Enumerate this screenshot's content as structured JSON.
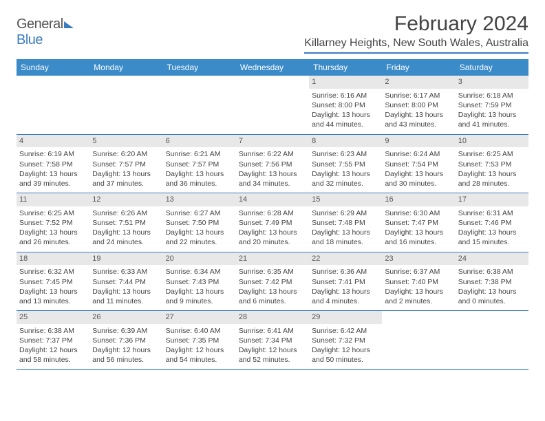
{
  "logo": {
    "text1": "General",
    "text2": "Blue"
  },
  "title": "February 2024",
  "location": "Killarney Heights, New South Wales, Australia",
  "colors": {
    "header_bar": "#3b8bc9",
    "accent": "#3b7bbf",
    "daynum_bg": "#e8e8e8",
    "text": "#444444"
  },
  "dow": [
    "Sunday",
    "Monday",
    "Tuesday",
    "Wednesday",
    "Thursday",
    "Friday",
    "Saturday"
  ],
  "weeks": [
    [
      null,
      null,
      null,
      null,
      {
        "n": "1",
        "sr": "6:16 AM",
        "ss": "8:00 PM",
        "dl": "13 hours and 44 minutes."
      },
      {
        "n": "2",
        "sr": "6:17 AM",
        "ss": "8:00 PM",
        "dl": "13 hours and 43 minutes."
      },
      {
        "n": "3",
        "sr": "6:18 AM",
        "ss": "7:59 PM",
        "dl": "13 hours and 41 minutes."
      }
    ],
    [
      {
        "n": "4",
        "sr": "6:19 AM",
        "ss": "7:58 PM",
        "dl": "13 hours and 39 minutes."
      },
      {
        "n": "5",
        "sr": "6:20 AM",
        "ss": "7:57 PM",
        "dl": "13 hours and 37 minutes."
      },
      {
        "n": "6",
        "sr": "6:21 AM",
        "ss": "7:57 PM",
        "dl": "13 hours and 36 minutes."
      },
      {
        "n": "7",
        "sr": "6:22 AM",
        "ss": "7:56 PM",
        "dl": "13 hours and 34 minutes."
      },
      {
        "n": "8",
        "sr": "6:23 AM",
        "ss": "7:55 PM",
        "dl": "13 hours and 32 minutes."
      },
      {
        "n": "9",
        "sr": "6:24 AM",
        "ss": "7:54 PM",
        "dl": "13 hours and 30 minutes."
      },
      {
        "n": "10",
        "sr": "6:25 AM",
        "ss": "7:53 PM",
        "dl": "13 hours and 28 minutes."
      }
    ],
    [
      {
        "n": "11",
        "sr": "6:25 AM",
        "ss": "7:52 PM",
        "dl": "13 hours and 26 minutes."
      },
      {
        "n": "12",
        "sr": "6:26 AM",
        "ss": "7:51 PM",
        "dl": "13 hours and 24 minutes."
      },
      {
        "n": "13",
        "sr": "6:27 AM",
        "ss": "7:50 PM",
        "dl": "13 hours and 22 minutes."
      },
      {
        "n": "14",
        "sr": "6:28 AM",
        "ss": "7:49 PM",
        "dl": "13 hours and 20 minutes."
      },
      {
        "n": "15",
        "sr": "6:29 AM",
        "ss": "7:48 PM",
        "dl": "13 hours and 18 minutes."
      },
      {
        "n": "16",
        "sr": "6:30 AM",
        "ss": "7:47 PM",
        "dl": "13 hours and 16 minutes."
      },
      {
        "n": "17",
        "sr": "6:31 AM",
        "ss": "7:46 PM",
        "dl": "13 hours and 15 minutes."
      }
    ],
    [
      {
        "n": "18",
        "sr": "6:32 AM",
        "ss": "7:45 PM",
        "dl": "13 hours and 13 minutes."
      },
      {
        "n": "19",
        "sr": "6:33 AM",
        "ss": "7:44 PM",
        "dl": "13 hours and 11 minutes."
      },
      {
        "n": "20",
        "sr": "6:34 AM",
        "ss": "7:43 PM",
        "dl": "13 hours and 9 minutes."
      },
      {
        "n": "21",
        "sr": "6:35 AM",
        "ss": "7:42 PM",
        "dl": "13 hours and 6 minutes."
      },
      {
        "n": "22",
        "sr": "6:36 AM",
        "ss": "7:41 PM",
        "dl": "13 hours and 4 minutes."
      },
      {
        "n": "23",
        "sr": "6:37 AM",
        "ss": "7:40 PM",
        "dl": "13 hours and 2 minutes."
      },
      {
        "n": "24",
        "sr": "6:38 AM",
        "ss": "7:38 PM",
        "dl": "13 hours and 0 minutes."
      }
    ],
    [
      {
        "n": "25",
        "sr": "6:38 AM",
        "ss": "7:37 PM",
        "dl": "12 hours and 58 minutes."
      },
      {
        "n": "26",
        "sr": "6:39 AM",
        "ss": "7:36 PM",
        "dl": "12 hours and 56 minutes."
      },
      {
        "n": "27",
        "sr": "6:40 AM",
        "ss": "7:35 PM",
        "dl": "12 hours and 54 minutes."
      },
      {
        "n": "28",
        "sr": "6:41 AM",
        "ss": "7:34 PM",
        "dl": "12 hours and 52 minutes."
      },
      {
        "n": "29",
        "sr": "6:42 AM",
        "ss": "7:32 PM",
        "dl": "12 hours and 50 minutes."
      },
      null,
      null
    ]
  ],
  "labels": {
    "sunrise": "Sunrise:",
    "sunset": "Sunset:",
    "daylight": "Daylight:"
  }
}
